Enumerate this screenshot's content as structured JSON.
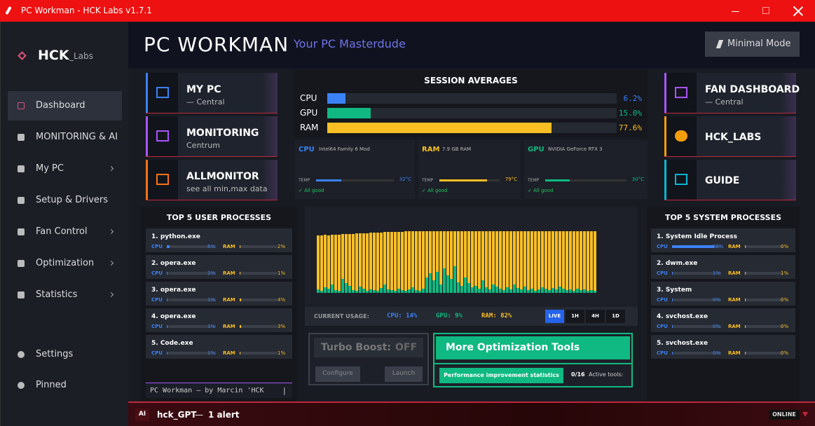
{
  "window": {
    "title": "PC Workman - HCK Labs v1.7.1"
  },
  "sidebar": {
    "brand": "HCK",
    "brand_sub": "_Labs",
    "items": [
      {
        "label": "Dashboard",
        "active": true,
        "chevron": false
      },
      {
        "label": "MONITORING & AI",
        "active": false,
        "chevron": false
      },
      {
        "label": "My PC",
        "active": false,
        "chevron": true
      },
      {
        "label": "Setup & Drivers",
        "active": false,
        "chevron": false
      },
      {
        "label": "Fan Control",
        "active": false,
        "chevron": true
      },
      {
        "label": "Optimization",
        "active": false,
        "chevron": true
      },
      {
        "label": "Statistics",
        "active": false,
        "chevron": true
      }
    ],
    "bottom": [
      {
        "label": "Settings"
      },
      {
        "label": "Pinned"
      }
    ]
  },
  "header": {
    "title": "PC WORKMAN",
    "subtitle": "Your PC Masterdude",
    "button": "Minimal Mode"
  },
  "left_tiles": [
    {
      "title": "MY PC",
      "subtitle": "— Central",
      "color": "#3b82f6"
    },
    {
      "title": "MONITORING",
      "subtitle": "Centrum",
      "color": "#a855f7"
    },
    {
      "title": "ALLMONITOR",
      "subtitle": "see all min,max data",
      "color": "#f97316"
    }
  ],
  "right_tiles": [
    {
      "title": "FAN DASHBOARD",
      "subtitle": "— Central",
      "color": "#a855f7"
    },
    {
      "title": "HCK_LABS",
      "subtitle": "",
      "color": "#f59e0b"
    },
    {
      "title": "GUIDE",
      "subtitle": "",
      "color": "#06b6d4"
    }
  ],
  "session": {
    "title": "SESSION AVERAGES",
    "bars": [
      {
        "label": "CPU",
        "value": 6.2,
        "value_label": "6.2%",
        "color": "#3b82f6"
      },
      {
        "label": "GPU",
        "value": 15.0,
        "value_label": "15.0%",
        "color": "#10b981"
      },
      {
        "label": "RAM",
        "value": 77.6,
        "value_label": "77.6%",
        "color": "#fbbf24"
      }
    ]
  },
  "cards": [
    {
      "name": "CPU",
      "detail": "Intel64 Family 6 Mod",
      "temp_label": "TEMP",
      "temp": 32,
      "temp_text": "32°C",
      "status": "✓ All good",
      "color": "#3b82f6"
    },
    {
      "name": "RAM",
      "detail": "7.9 GB RAM",
      "temp_label": "TEMP",
      "temp": 79,
      "temp_text": "79°C",
      "status": "✓ All good",
      "color": "#fbbf24"
    },
    {
      "name": "GPU",
      "detail": "NVIDIA GeForce RTX 3",
      "temp_label": "TEMP",
      "temp": 30,
      "temp_text": "30°C",
      "status": "✓ All good",
      "color": "#10b981"
    }
  ],
  "user_processes": {
    "title": "TOP 5 USER PROCESSES",
    "cpu_text": "CPU",
    "ram_text": "RAM",
    "rows": [
      {
        "name": "1. python.exe",
        "cpu": 6,
        "cpu_label": "6%",
        "ram": 2,
        "ram_label": "2%"
      },
      {
        "name": "2. opera.exe",
        "cpu": 2,
        "cpu_label": "2%",
        "ram": 1,
        "ram_label": "1%"
      },
      {
        "name": "3. opera.exe",
        "cpu": 1,
        "cpu_label": "1%",
        "ram": 4,
        "ram_label": "4%"
      },
      {
        "name": "4. opera.exe",
        "cpu": 1,
        "cpu_label": "1%",
        "ram": 3,
        "ram_label": "3%"
      },
      {
        "name": "5. Code.exe",
        "cpu": 1,
        "cpu_label": "1%",
        "ram": 1,
        "ram_label": "1%"
      }
    ],
    "footer": "PC Workman — by Marcin 'HCK",
    "cursor": "|"
  },
  "system_processes": {
    "title": "TOP 5 SYSTEM PROCESSES",
    "cpu_text": "CPU",
    "ram_text": "RAM",
    "rows": [
      {
        "name": "1. System Idle Process",
        "cpu": 86,
        "cpu_label": "86%",
        "ram": 0,
        "ram_label": "0%"
      },
      {
        "name": "2. dwm.exe",
        "cpu": 1,
        "cpu_label": "1%",
        "ram": 1,
        "ram_label": "1%"
      },
      {
        "name": "3. System",
        "cpu": 0,
        "cpu_label": "0%",
        "ram": 0,
        "ram_label": "0%"
      },
      {
        "name": "4. svchost.exe",
        "cpu": 0,
        "cpu_label": "0%",
        "ram": 0,
        "ram_label": "0%"
      },
      {
        "name": "5. svchost.exe",
        "cpu": 0,
        "cpu_label": "0%",
        "ram": 0,
        "ram_label": "0%"
      }
    ]
  },
  "usage_history": {
    "ram_color": "#fbbf24",
    "cpu_color": "#10b981",
    "ram": [
      82,
      82,
      83,
      82,
      83,
      83,
      83,
      84,
      84,
      84,
      84,
      85,
      85,
      85,
      85,
      86,
      86,
      86,
      86,
      87,
      87,
      87,
      87,
      87,
      87,
      88,
      88,
      88,
      88,
      88,
      88,
      88,
      88,
      88,
      88,
      88,
      88,
      88,
      88,
      88,
      88,
      88,
      88,
      88,
      88,
      88,
      88,
      88,
      88,
      88,
      88,
      88,
      88,
      88,
      88,
      88,
      88,
      88,
      88,
      88,
      88,
      88,
      88,
      88,
      88,
      88,
      88,
      88,
      88,
      88,
      88,
      88,
      88,
      88,
      88,
      88,
      88,
      88,
      88,
      88
    ],
    "cpu": [
      5,
      3,
      8,
      6,
      12,
      4,
      3,
      20,
      14,
      10,
      4,
      3,
      9,
      6,
      3,
      5,
      4,
      3,
      7,
      12,
      5,
      4,
      3,
      6,
      4,
      3,
      5,
      8,
      4,
      3,
      6,
      22,
      28,
      18,
      30,
      12,
      35,
      25,
      20,
      38,
      15,
      10,
      22,
      14,
      8,
      10,
      6,
      18,
      8,
      5,
      12,
      9,
      6,
      4,
      8,
      5,
      12,
      7,
      5,
      9,
      4,
      6,
      3,
      5,
      8,
      6,
      4,
      7,
      5,
      9,
      6,
      4,
      5,
      3,
      6,
      4,
      5,
      3,
      4,
      3
    ]
  },
  "current": {
    "label": "CURRENT USAGE:",
    "cpu": "CPU: 14%",
    "gpu": "GPU: 9%",
    "ram": "RAM: 82%",
    "ranges": [
      "LIVE",
      "1H",
      "4H",
      "1D"
    ]
  },
  "turbo": {
    "label": "Turbo Boost:",
    "state": "OFF",
    "configure": "Configure",
    "launch": "Launch"
  },
  "optimization": {
    "title": "More Optimization Tools",
    "button": "Performance improvement statistics",
    "count": "0/16",
    "active": "Active tools:"
  },
  "assistant": {
    "badge": "AI",
    "name": "hck_GPT",
    "sep": "—",
    "alerts": "1 alert",
    "status": "ONLINE"
  }
}
